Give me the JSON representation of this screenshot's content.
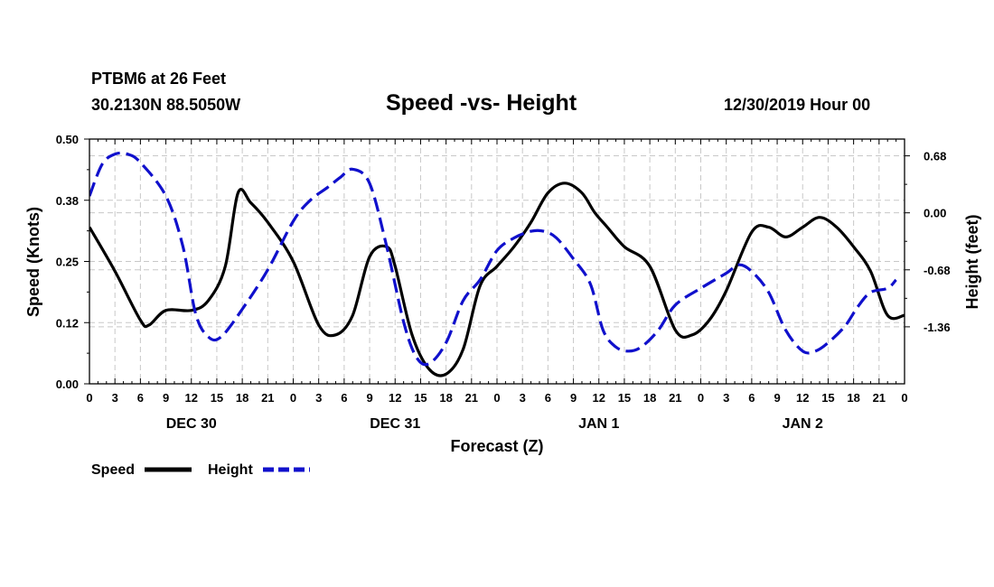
{
  "header": {
    "station": "PTBM6 at 26 Feet",
    "coords": "30.2130N 88.5050W",
    "title": "Speed -vs- Height",
    "timestamp": "12/30/2019 Hour 00"
  },
  "colors": {
    "speed": "#000000",
    "height": "#1010cc",
    "grid": "#c8c8c8"
  },
  "chart_data": {
    "type": "line",
    "title": "Speed -vs- Height",
    "xlabel": "Forecast (Z)",
    "ylabel": "Speed (Knots)",
    "y2label": "Height (feet)",
    "xlim": [
      0,
      96
    ],
    "ylim": [
      0,
      0.5
    ],
    "y2lim": [
      -2.04,
      0.88
    ],
    "x_tick_values": [
      0,
      3,
      6,
      9,
      12,
      15,
      18,
      21,
      24,
      27,
      30,
      33,
      36,
      39,
      42,
      45,
      48,
      51,
      54,
      57,
      60,
      63,
      66,
      69,
      72,
      75,
      78,
      81,
      84,
      87,
      90,
      93,
      96
    ],
    "x_tick_labels": [
      "0",
      "3",
      "6",
      "9",
      "12",
      "15",
      "18",
      "21",
      "0",
      "3",
      "6",
      "9",
      "12",
      "15",
      "18",
      "21",
      "0",
      "3",
      "6",
      "9",
      "12",
      "15",
      "18",
      "21",
      "0",
      "3",
      "6",
      "9",
      "12",
      "15",
      "18",
      "21",
      "0"
    ],
    "y_ticks": [
      {
        "value": 0.0,
        "label": "0.00"
      },
      {
        "value": 0.125,
        "label": "0.12"
      },
      {
        "value": 0.25,
        "label": "0.25"
      },
      {
        "value": 0.375,
        "label": "0.38"
      },
      {
        "value": 0.5,
        "label": "0.50"
      }
    ],
    "y2_ticks": [
      {
        "value": 0.68,
        "label": "0.68"
      },
      {
        "value": 0.0,
        "label": "0.00"
      },
      {
        "value": -0.68,
        "label": "-0.68"
      },
      {
        "value": -1.36,
        "label": "-1.36"
      }
    ],
    "day_labels": [
      {
        "x": 12,
        "label": "DEC 30"
      },
      {
        "x": 36,
        "label": "DEC 31"
      },
      {
        "x": 60,
        "label": "JAN 1"
      },
      {
        "x": 84,
        "label": "JAN 2"
      }
    ],
    "legend_position": "bottom-left",
    "series": [
      {
        "name": "Speed",
        "axis": "left",
        "style": "solid",
        "x": [
          0,
          3,
          6,
          7,
          9,
          12,
          14,
          16,
          17.5,
          19,
          21,
          24,
          27,
          29,
          31,
          33,
          35,
          36,
          38,
          40,
          42,
          44,
          46,
          48,
          50,
          52,
          54,
          56,
          58,
          59.5,
          61,
          63,
          66,
          69,
          71,
          73,
          75,
          78,
          80,
          82,
          84,
          86,
          88,
          90,
          92,
          94,
          96
        ],
        "y": [
          0.32,
          0.23,
          0.13,
          0.12,
          0.15,
          0.15,
          0.17,
          0.24,
          0.39,
          0.37,
          0.33,
          0.25,
          0.12,
          0.1,
          0.14,
          0.26,
          0.28,
          0.24,
          0.1,
          0.03,
          0.02,
          0.07,
          0.2,
          0.24,
          0.28,
          0.33,
          0.39,
          0.41,
          0.39,
          0.35,
          0.32,
          0.28,
          0.24,
          0.11,
          0.1,
          0.13,
          0.19,
          0.31,
          0.32,
          0.3,
          0.32,
          0.34,
          0.32,
          0.28,
          0.23,
          0.14,
          0.14
        ]
      },
      {
        "name": "Height",
        "axis": "right",
        "style": "dashed",
        "x": [
          0,
          1.5,
          3,
          4.5,
          6,
          9,
          11,
          12.5,
          14,
          15.5,
          18,
          21,
          24,
          26,
          28,
          29.5,
          31,
          33,
          35,
          37,
          38.5,
          40,
          42,
          44,
          46,
          48,
          50,
          52,
          53.5,
          55,
          57,
          59,
          60.5,
          62,
          63.5,
          65,
          67,
          69,
          72,
          75,
          76.5,
          78,
          80,
          82,
          84,
          85.5,
          87,
          89,
          90.5,
          92,
          94,
          95
        ],
        "y": [
          0.2,
          0.58,
          0.7,
          0.7,
          0.6,
          0.2,
          -0.4,
          -1.2,
          -1.48,
          -1.48,
          -1.15,
          -0.68,
          -0.1,
          0.15,
          0.3,
          0.42,
          0.52,
          0.35,
          -0.4,
          -1.3,
          -1.72,
          -1.8,
          -1.55,
          -1.05,
          -0.8,
          -0.45,
          -0.3,
          -0.22,
          -0.22,
          -0.3,
          -0.55,
          -0.85,
          -1.4,
          -1.6,
          -1.65,
          -1.6,
          -1.4,
          -1.1,
          -0.9,
          -0.72,
          -0.62,
          -0.7,
          -0.95,
          -1.4,
          -1.65,
          -1.65,
          -1.55,
          -1.35,
          -1.12,
          -0.95,
          -0.9,
          -0.8
        ]
      }
    ]
  }
}
